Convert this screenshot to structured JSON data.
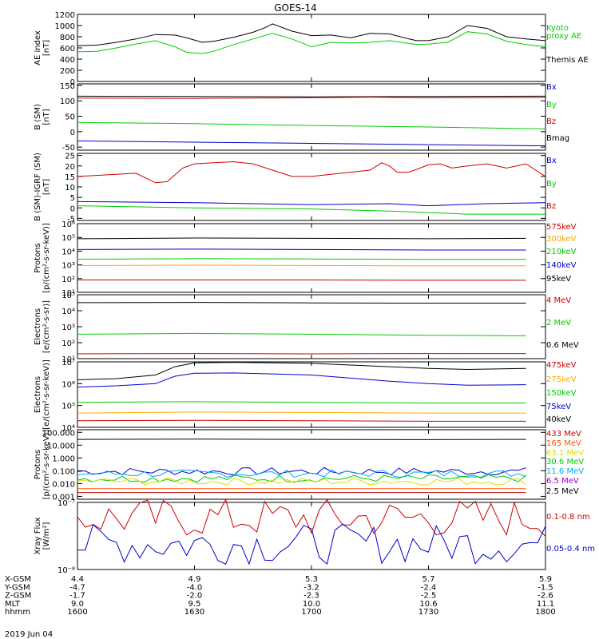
{
  "title": "GOES-14",
  "chart_data": [
    {
      "type": "line",
      "ylabel": "AE index\n[nT]",
      "yticks": [
        {
          "label": "1200",
          "value": 1200
        },
        {
          "label": "1000",
          "value": 1000
        },
        {
          "label": "800",
          "value": 800
        },
        {
          "label": "600",
          "value": 600
        },
        {
          "label": "400",
          "value": 400
        },
        {
          "label": "200",
          "value": 200
        },
        {
          "label": "0",
          "value": 0
        }
      ],
      "ylim": [
        0,
        1200
      ],
      "legend": [
        {
          "label": "Kyoto",
          "color": "#00cc00"
        },
        {
          "label": "proxy AE",
          "color": "#00cc00"
        },
        {
          "label": "Themis AE",
          "color": "#000000"
        }
      ],
      "series": [
        {
          "color": "#000000",
          "x": [
            1600,
            1605,
            1610,
            1615,
            1620,
            1625,
            1628,
            1632,
            1635,
            1640,
            1645,
            1648,
            1650,
            1655,
            1700,
            1705,
            1710,
            1715,
            1720,
            1725,
            1727,
            1730,
            1735,
            1740,
            1745,
            1750,
            1755,
            1800
          ],
          "y": [
            640,
            650,
            700,
            760,
            840,
            830,
            780,
            700,
            720,
            790,
            880,
            960,
            1030,
            900,
            820,
            830,
            780,
            860,
            850,
            760,
            730,
            730,
            800,
            1000,
            950,
            800,
            760,
            730
          ]
        },
        {
          "color": "#00cc00",
          "x": [
            1600,
            1605,
            1610,
            1615,
            1620,
            1625,
            1628,
            1632,
            1635,
            1640,
            1645,
            1650,
            1655,
            1700,
            1705,
            1710,
            1715,
            1720,
            1725,
            1727,
            1730,
            1735,
            1740,
            1745,
            1750,
            1755,
            1800
          ],
          "y": [
            530,
            540,
            600,
            670,
            730,
            620,
            520,
            500,
            540,
            660,
            760,
            860,
            760,
            620,
            700,
            690,
            700,
            730,
            680,
            660,
            670,
            700,
            890,
            850,
            720,
            660,
            620
          ]
        }
      ]
    },
    {
      "type": "line",
      "ylabel": "B (SM)\n[nT]",
      "yticks": [
        {
          "label": "150",
          "value": 150
        },
        {
          "label": "100",
          "value": 100
        },
        {
          "label": "50",
          "value": 50
        },
        {
          "label": "0",
          "value": 0
        },
        {
          "label": "-50",
          "value": -50
        }
      ],
      "ylim": [
        -60,
        155
      ],
      "legend": [
        {
          "label": "Bx",
          "color": "#0000cc"
        },
        {
          "label": "By",
          "color": "#00cc00"
        },
        {
          "label": "Bz",
          "color": "#cc0000"
        },
        {
          "label": "Bmag",
          "color": "#000000"
        }
      ],
      "series": [
        {
          "color": "#000000",
          "x": [
            1600,
            1630,
            1700,
            1730,
            1800
          ],
          "y": [
            115,
            114,
            113,
            114,
            115
          ]
        },
        {
          "color": "#cc0000",
          "x": [
            1600,
            1630,
            1700,
            1715,
            1730,
            1800
          ],
          "y": [
            109,
            108,
            110,
            112,
            110,
            111
          ]
        },
        {
          "color": "#00cc00",
          "x": [
            1600,
            1630,
            1700,
            1730,
            1800
          ],
          "y": [
            30,
            26,
            20,
            15,
            9
          ]
        },
        {
          "color": "#0000cc",
          "x": [
            1600,
            1630,
            1700,
            1730,
            1800
          ],
          "y": [
            -30,
            -34,
            -38,
            -42,
            -46
          ]
        }
      ]
    },
    {
      "type": "line",
      "ylabel": "B (SM)-IGRF (SM)\n[nT]",
      "yticks": [
        {
          "label": "25",
          "value": 25
        },
        {
          "label": "20",
          "value": 20
        },
        {
          "label": "15",
          "value": 15
        },
        {
          "label": "10",
          "value": 10
        },
        {
          "label": "5",
          "value": 5
        },
        {
          "label": "0",
          "value": 0
        },
        {
          "label": "-5",
          "value": -5
        }
      ],
      "ylim": [
        -6,
        26
      ],
      "legend": [
        {
          "label": "Bx",
          "color": "#0000cc"
        },
        {
          "label": "By",
          "color": "#00cc00"
        },
        {
          "label": "Bz",
          "color": "#cc0000"
        }
      ],
      "series": [
        {
          "color": "#cc0000",
          "x": [
            1600,
            1605,
            1610,
            1615,
            1620,
            1623,
            1627,
            1630,
            1635,
            1640,
            1645,
            1650,
            1655,
            1700,
            1705,
            1710,
            1715,
            1718,
            1720,
            1722,
            1725,
            1730,
            1733,
            1736,
            1740,
            1745,
            1750,
            1755,
            1800
          ],
          "y": [
            15,
            15.5,
            16,
            16.5,
            12,
            12.5,
            19,
            21,
            21.5,
            22,
            21,
            18,
            15,
            15,
            16,
            17,
            18,
            21.5,
            20,
            17,
            17,
            20.5,
            21,
            19,
            20,
            21,
            19,
            21,
            15
          ]
        },
        {
          "color": "#0000cc",
          "x": [
            1600,
            1630,
            1700,
            1720,
            1730,
            1745,
            1800
          ],
          "y": [
            3,
            2.5,
            1.5,
            2,
            1,
            2,
            2.5
          ]
        },
        {
          "color": "#00cc00",
          "x": [
            1600,
            1630,
            1700,
            1720,
            1740,
            1800
          ],
          "y": [
            1,
            0,
            -0.5,
            -1.5,
            -3,
            -3
          ]
        }
      ]
    },
    {
      "type": "line",
      "ylabel": "Protons\n[p/(cm²-s-sr-keV)]",
      "yscale": "log",
      "yticks": [
        {
          "label": "10⁶",
          "value": 1000000
        },
        {
          "label": "10⁵",
          "value": 100000
        },
        {
          "label": "10⁴",
          "value": 10000
        },
        {
          "label": "10³",
          "value": 1000
        },
        {
          "label": "10²",
          "value": 100
        },
        {
          "label": "10¹",
          "value": 10
        }
      ],
      "ylim": [
        10,
        1000000
      ],
      "legend": [
        {
          "label": "575keV",
          "color": "#cc0000"
        },
        {
          "label": "300keV",
          "color": "#ffaa00"
        },
        {
          "label": "210keV",
          "color": "#00cc00"
        },
        {
          "label": "140keV",
          "color": "#0000cc"
        },
        {
          "label": "95keV",
          "color": "#000000"
        }
      ],
      "series": [
        {
          "color": "#000000",
          "x": [
            1600,
            1630,
            1700,
            1730,
            1755
          ],
          "y": [
            80000,
            90000,
            85000,
            80000,
            85000
          ]
        },
        {
          "color": "#0000cc",
          "x": [
            1600,
            1630,
            1700,
            1730,
            1755
          ],
          "y": [
            13000,
            14000,
            13000,
            12000,
            12000
          ]
        },
        {
          "color": "#00cc00",
          "x": [
            1600,
            1630,
            1700,
            1730,
            1755
          ],
          "y": [
            2600,
            2800,
            2700,
            2500,
            2500
          ]
        },
        {
          "color": "#ffaa00",
          "x": [
            1600,
            1630,
            1700,
            1730,
            1755
          ],
          "y": [
            900,
            950,
            900,
            850,
            850
          ]
        },
        {
          "color": "#cc0000",
          "x": [
            1600,
            1630,
            1700,
            1730,
            1755
          ],
          "y": [
            80,
            80,
            80,
            75,
            75
          ]
        }
      ]
    },
    {
      "type": "line",
      "ylabel": "Electrons\n[e/(cm²-s-sr)]",
      "yscale": "log",
      "yticks": [
        {
          "label": "10⁵",
          "value": 100000
        },
        {
          "label": "10⁴",
          "value": 10000
        },
        {
          "label": "10³",
          "value": 1000
        },
        {
          "label": "10²",
          "value": 100
        },
        {
          "label": "10¹",
          "value": 10
        }
      ],
      "ylim": [
        10,
        100000
      ],
      "legend": [
        {
          "label": "4 MeV",
          "color": "#cc0000"
        },
        {
          "label": "2 MeV",
          "color": "#00cc00"
        },
        {
          "label": "0.6 MeV",
          "color": "#000000"
        }
      ],
      "series": [
        {
          "color": "#000000",
          "x": [
            1600,
            1630,
            1700,
            1730,
            1755
          ],
          "y": [
            32000,
            33000,
            31000,
            30000,
            30000
          ]
        },
        {
          "color": "#00cc00",
          "x": [
            1600,
            1630,
            1700,
            1730,
            1755
          ],
          "y": [
            340,
            380,
            340,
            290,
            270
          ]
        },
        {
          "color": "#cc0000",
          "x": [
            1600,
            1630,
            1700,
            1730,
            1755
          ],
          "y": [
            20,
            21,
            20,
            21,
            21
          ]
        }
      ]
    },
    {
      "type": "line",
      "ylabel": "Electrons\n[e/(cm²-s-sr-keV)]",
      "yscale": "log",
      "yticks": [
        {
          "label": "10⁷",
          "value": 10000000
        },
        {
          "label": "10⁶",
          "value": 1000000
        },
        {
          "label": "10⁵",
          "value": 100000
        },
        {
          "label": "10⁴",
          "value": 10000
        }
      ],
      "ylim": [
        10000,
        10000000
      ],
      "legend": [
        {
          "label": "475keV",
          "color": "#cc0000"
        },
        {
          "label": "275keV",
          "color": "#ffaa00"
        },
        {
          "label": "150keV",
          "color": "#00cc00"
        },
        {
          "label": "75keV",
          "color": "#0000cc"
        },
        {
          "label": "40keV",
          "color": "#000000"
        }
      ],
      "series": [
        {
          "color": "#000000",
          "x": [
            1600,
            1610,
            1620,
            1625,
            1630,
            1640,
            1700,
            1720,
            1730,
            1740,
            1755
          ],
          "y": [
            1500000,
            1700000,
            2500000,
            6000000,
            9000000,
            9500000,
            8500000,
            6000000,
            5000000,
            4500000,
            5000000
          ]
        },
        {
          "color": "#0000cc",
          "x": [
            1600,
            1610,
            1620,
            1625,
            1630,
            1640,
            1700,
            1720,
            1730,
            1740,
            1755
          ],
          "y": [
            700000,
            800000,
            1000000,
            2200000,
            3000000,
            3100000,
            2500000,
            1300000,
            1000000,
            850000,
            900000
          ]
        },
        {
          "color": "#00cc00",
          "x": [
            1600,
            1630,
            1700,
            1730,
            1755
          ],
          "y": [
            140000,
            150000,
            140000,
            130000,
            130000
          ]
        },
        {
          "color": "#ffaa00",
          "x": [
            1600,
            1630,
            1700,
            1730,
            1755
          ],
          "y": [
            45000,
            50000,
            48000,
            45000,
            45000
          ]
        },
        {
          "color": "#cc0000",
          "x": [
            1600,
            1630,
            1700,
            1730,
            1755
          ],
          "y": [
            20000,
            21000,
            20000,
            19000,
            19000
          ]
        }
      ]
    },
    {
      "type": "line",
      "ylabel": "Protons\n[p/(cm²-s-sr-keV)]",
      "yscale": "log",
      "yticks": [
        {
          "label": "100.000",
          "value": 100
        },
        {
          "label": "10.000",
          "value": 10
        },
        {
          "label": "1.000",
          "value": 1
        },
        {
          "label": "0.100",
          "value": 0.1
        },
        {
          "label": "0.010",
          "value": 0.01
        },
        {
          "label": "0.001",
          "value": 0.001
        }
      ],
      "ylim": [
        0.0006,
        160
      ],
      "legend": [
        {
          "label": "433 MeV",
          "color": "#cc0000"
        },
        {
          "label": "165 MeV",
          "color": "#ff5500"
        },
        {
          "label": "63.1 MeV",
          "color": "#dddd00"
        },
        {
          "label": "30.6 MeV",
          "color": "#00cc00"
        },
        {
          "label": "11.6 MeV",
          "color": "#00aaff"
        },
        {
          "label": "6.5 MeV",
          "color": "#9900cc"
        },
        {
          "label": "2.5 MeV",
          "color": "#000000"
        }
      ],
      "series": [
        {
          "color": "#000000",
          "x": [
            1600,
            1630,
            1700,
            1730,
            1755
          ],
          "y": [
            28,
            30,
            28,
            27,
            28
          ]
        },
        {
          "color": "#0000cc",
          "noisy": true,
          "x": [
            1600,
            1755
          ],
          "y": [
            0.09,
            0.09
          ]
        },
        {
          "color": "#00aaff",
          "noisy": true,
          "x": [
            1600,
            1755
          ],
          "y": [
            0.06,
            0.06
          ]
        },
        {
          "color": "#00cc00",
          "noisy": true,
          "x": [
            1600,
            1755
          ],
          "y": [
            0.025,
            0.025
          ]
        },
        {
          "color": "#dddd00",
          "noisy": true,
          "x": [
            1600,
            1755
          ],
          "y": [
            0.015,
            0.015
          ]
        },
        {
          "color": "#ff5500",
          "x": [
            1600,
            1755
          ],
          "y": [
            0.004,
            0.004
          ]
        },
        {
          "color": "#cc0000",
          "x": [
            1600,
            1755
          ],
          "y": [
            0.002,
            0.002
          ]
        }
      ]
    },
    {
      "type": "line",
      "ylabel": "Xray Flux\n[W/m²]",
      "yscale": "log",
      "yticks": [
        {
          "label": "10⁻⁷",
          "value": 1e-07
        },
        {
          "label": "10⁻⁸",
          "value": 1e-08
        }
      ],
      "ylim": [
        1e-08,
        1e-07
      ],
      "legend": [
        {
          "label": "0.1-0.8 nm",
          "color": "#cc0000"
        },
        {
          "label": "0.05-0.4 nm",
          "color": "#0000cc"
        }
      ],
      "series": [
        {
          "color": "#cc0000",
          "noisy": true,
          "x": [
            1600,
            1800
          ],
          "y": [
            5.8e-08,
            5.8e-08
          ]
        },
        {
          "color": "#0000cc",
          "noisy": true,
          "x": [
            1600,
            1800
          ],
          "y": [
            2.4e-08,
            2.4e-08
          ]
        }
      ]
    }
  ],
  "xaxis": {
    "xlim": [
      1600,
      1800
    ],
    "rows": [
      {
        "label": "X-GSM",
        "values": [
          "4.4",
          "4.9",
          "5.3",
          "5.7",
          "5.9"
        ]
      },
      {
        "label": "Y-GSM",
        "values": [
          "-4.7",
          "-4.0",
          "-3.2",
          "-2.4",
          "-1.5"
        ]
      },
      {
        "label": "Z-GSM",
        "values": [
          "-1.7",
          "-2.0",
          "-2.3",
          "-2.5",
          "-2.6"
        ]
      },
      {
        "label": "MLT",
        "values": [
          "9.0",
          "9.5",
          "10.0",
          "10.6",
          "11.1"
        ]
      },
      {
        "label": "hhmm",
        "values": [
          "1600",
          "1630",
          "1700",
          "1730",
          "1800"
        ]
      }
    ],
    "tick_times": [
      1600,
      1630,
      1700,
      1730,
      1800
    ],
    "date": "2019 Jun 04"
  }
}
